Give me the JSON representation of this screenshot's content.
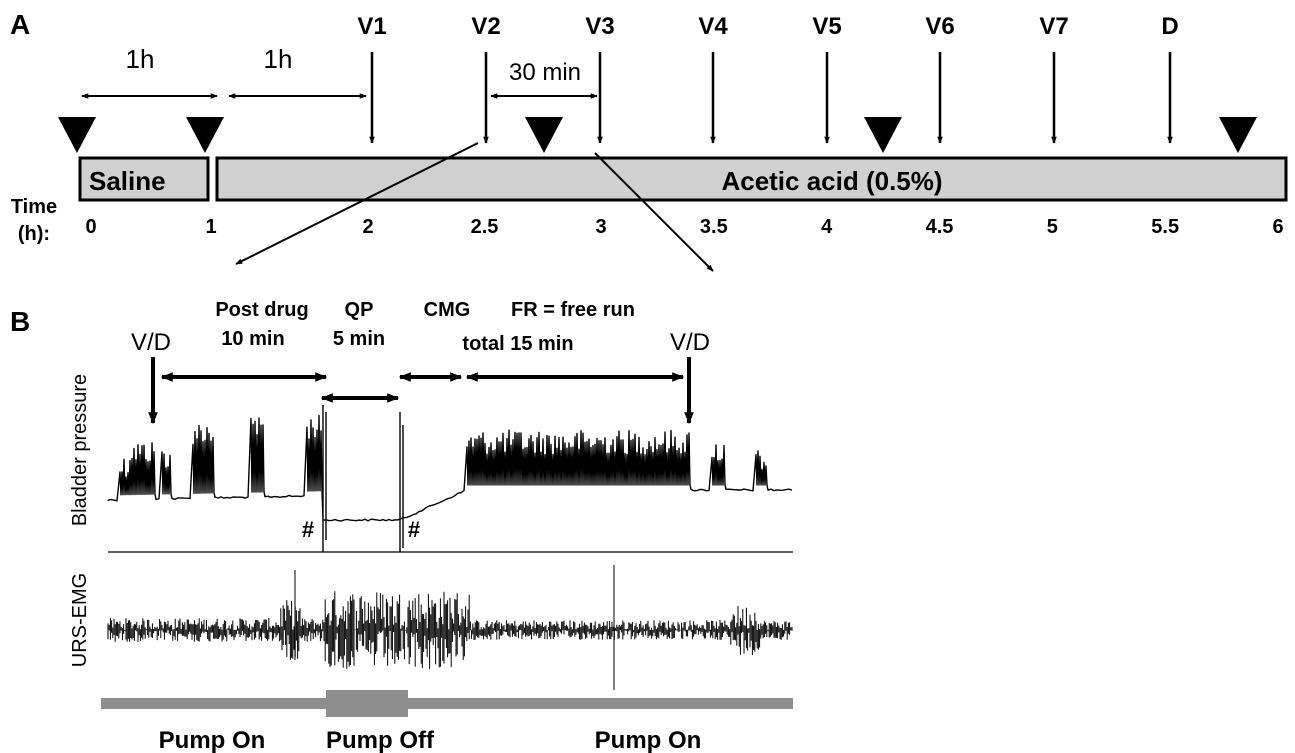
{
  "panel_a": {
    "label": "A",
    "interval_labels": [
      "1h",
      "1h",
      "30 min"
    ],
    "time_label_line1": "Time",
    "time_label_line2": "(h):",
    "ticks": [
      {
        "label": "0",
        "value": 0
      },
      {
        "label": "1",
        "value": 1
      },
      {
        "label": "2",
        "value": 2
      },
      {
        "label": "2.5",
        "value": 2.5
      },
      {
        "label": "3",
        "value": 3
      },
      {
        "label": "3.5",
        "value": 3.5
      },
      {
        "label": "4",
        "value": 4
      },
      {
        "label": "4.5",
        "value": 4.5
      },
      {
        "label": "5",
        "value": 5
      },
      {
        "label": "5.5",
        "value": 5.5
      },
      {
        "label": "6",
        "value": 6
      }
    ],
    "events": [
      "V1",
      "V2",
      "V3",
      "V4",
      "V5",
      "V6",
      "V7",
      "D"
    ],
    "saline_label": "Saline",
    "acid_label": "Acetic acid (0.5%)"
  },
  "panel_b": {
    "label": "B",
    "vd_label": "V/D",
    "phases": {
      "post_drug_line1": "Post drug",
      "post_drug_line2": "10 min",
      "qp_line1": "QP",
      "qp_line2": "5 min",
      "cmg": "CMG",
      "fr": "FR = free run",
      "total": "total 15 min"
    },
    "hash_mark": "#",
    "bladder_label": "Bladder pressure",
    "emg_label": "URS-EMG",
    "pump_on": "Pump On",
    "pump_off": "Pump Off"
  },
  "colors": {
    "bar_fill": "#d0d0d0",
    "pump_bar": "#8e8e8e"
  }
}
